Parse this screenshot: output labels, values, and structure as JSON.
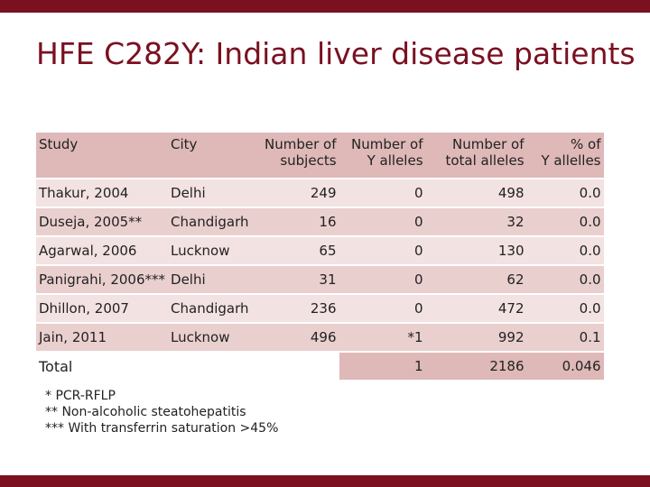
{
  "title": "HFE C282Y: Indian liver disease patients",
  "table": {
    "headers": [
      [
        "Study"
      ],
      [
        "City"
      ],
      [
        "Number of",
        "subjects"
      ],
      [
        "Number of",
        "Y alleles"
      ],
      [
        "Number of",
        "total alleles"
      ],
      [
        "% of",
        "Y allelles"
      ]
    ],
    "rows": [
      [
        "Thakur, 2004",
        "Delhi",
        "249",
        "0",
        "498",
        "0.0"
      ],
      [
        "Duseja, 2005**",
        "Chandigarh",
        "16",
        "0",
        "32",
        "0.0"
      ],
      [
        "Agarwal, 2006",
        "Lucknow",
        "65",
        "0",
        "130",
        "0.0"
      ],
      [
        "Panigrahi, 2006***",
        "Delhi",
        "31",
        "0",
        "62",
        "0.0"
      ],
      [
        "Dhillon, 2007",
        "Chandigarh",
        "236",
        "0",
        "472",
        "0.0"
      ],
      [
        "Jain, 2011",
        "Lucknow",
        "496",
        "*1",
        "992",
        "0.1"
      ]
    ],
    "total": {
      "label": "Total",
      "values": [
        "1",
        "2186",
        "0.046"
      ]
    }
  },
  "footnotes": [
    "* PCR-RFLP",
    "** Non-alcoholic steatohepatitis",
    "*** With transferrin saturation >45%"
  ]
}
